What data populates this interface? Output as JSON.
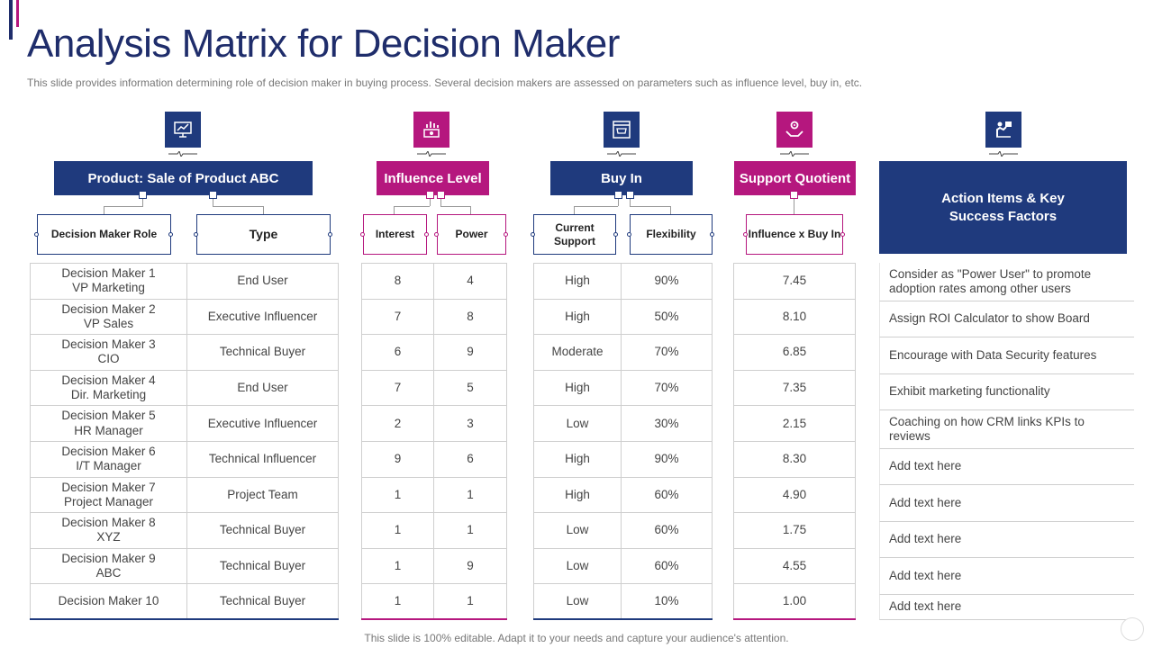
{
  "slide": {
    "title": "Analysis Matrix for Decision Maker",
    "subtitle": "This slide provides information determining role of decision maker in buying process. Several decision makers are assessed on parameters such as influence level, buy in, etc.",
    "footer": "This slide is 100% editable. Adapt it to your needs and capture your audience's attention."
  },
  "colors": {
    "navy": "#1f3a7d",
    "magenta": "#b5177e"
  },
  "sections": {
    "product": {
      "header": "Product: Sale of Product ABC",
      "icon": "presentation-chart-icon",
      "col1": "Decision Maker Role",
      "col2": "Type"
    },
    "influence": {
      "header": "Influence Level",
      "icon": "money-chart-icon",
      "col1": "Interest",
      "col2": "Power"
    },
    "buyin": {
      "header": "Buy In",
      "icon": "shopping-cart-window-icon",
      "col1": "Current Support",
      "col2": "Flexibility"
    },
    "support": {
      "header": "Support Quotient",
      "icon": "gear-hands-icon",
      "col1": "Influence x Buy In"
    },
    "action": {
      "header": "Action Items & Key Success Factors",
      "icon": "person-presenting-icon"
    }
  },
  "rows": [
    {
      "role": "Decision Maker 1\nVP Marketing",
      "type": "End User",
      "interest": "8",
      "power": "4",
      "support": "High",
      "flex": "90%",
      "quotient": "7.45"
    },
    {
      "role": "Decision Maker 2\nVP Sales",
      "type": "Executive Influencer",
      "interest": "7",
      "power": "8",
      "support": "High",
      "flex": "50%",
      "quotient": "8.10"
    },
    {
      "role": "Decision Maker 3\nCIO",
      "type": "Technical Buyer",
      "interest": "6",
      "power": "9",
      "support": "Moderate",
      "flex": "70%",
      "quotient": "6.85"
    },
    {
      "role": "Decision Maker 4\nDir. Marketing",
      "type": "End User",
      "interest": "7",
      "power": "5",
      "support": "High",
      "flex": "70%",
      "quotient": "7.35"
    },
    {
      "role": "Decision Maker 5\nHR Manager",
      "type": "Executive Influencer",
      "interest": "2",
      "power": "3",
      "support": "Low",
      "flex": "30%",
      "quotient": "2.15"
    },
    {
      "role": "Decision Maker 6\nI/T Manager",
      "type": "Technical Influencer",
      "interest": "9",
      "power": "6",
      "support": "High",
      "flex": "90%",
      "quotient": "8.30"
    },
    {
      "role": "Decision Maker 7\nProject Manager",
      "type": "Project Team",
      "interest": "1",
      "power": "1",
      "support": "High",
      "flex": "60%",
      "quotient": "4.90"
    },
    {
      "role": "Decision Maker 8\nXYZ",
      "type": "Technical Buyer",
      "interest": "1",
      "power": "1",
      "support": "Low",
      "flex": "60%",
      "quotient": "1.75"
    },
    {
      "role": "Decision Maker 9\nABC",
      "type": "Technical Buyer",
      "interest": "1",
      "power": "9",
      "support": "Low",
      "flex": "60%",
      "quotient": "4.55"
    },
    {
      "role": "Decision Maker 10",
      "type": "Technical Buyer",
      "interest": "1",
      "power": "1",
      "support": "Low",
      "flex": "10%",
      "quotient": "1.00"
    }
  ],
  "actions": [
    "Consider as  \"Power User\" to promote adoption rates among other users",
    "Assign ROI Calculator to show Board",
    "Encourage  with Data Security features",
    "Exhibit marketing functionality",
    "Coaching  on how CRM links KPIs to reviews",
    "Add text here",
    "Add text here",
    "Add text here",
    "Add text here",
    "Add text here"
  ]
}
